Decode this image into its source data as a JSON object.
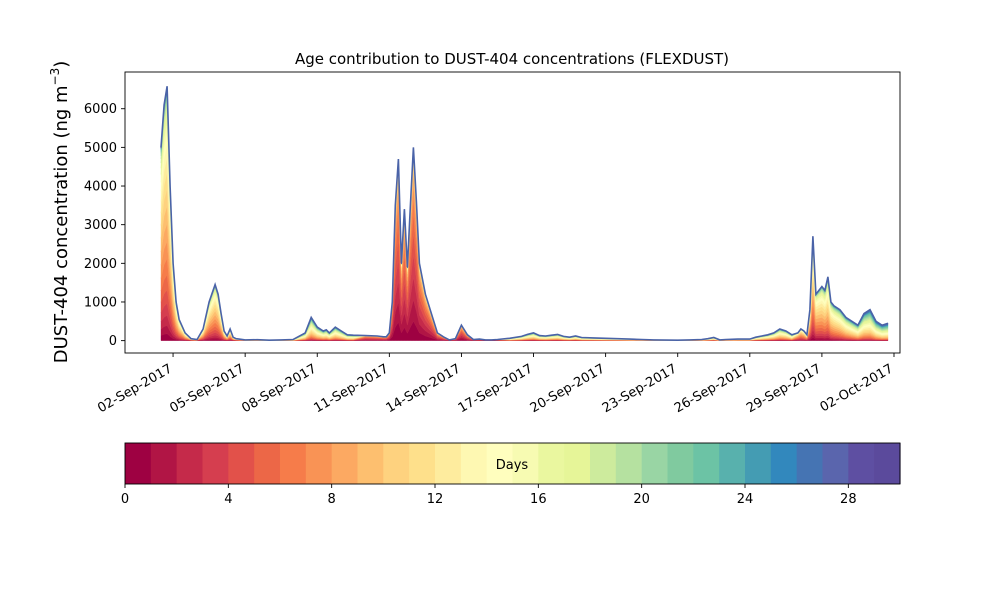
{
  "chart_data": {
    "type": "area",
    "title": "Age contribution to DUST-404 concentrations (FLEXDUST)",
    "ylabel": "DUST-404 concentration (ng m",
    "ylabel_sup": "−3",
    "ylabel_close": ")",
    "ylim": [
      -320,
      6950
    ],
    "yticks": [
      0,
      1000,
      2000,
      3000,
      4000,
      5000,
      6000
    ],
    "xlim": [
      "2017-08-31T00:00",
      "2017-10-02T06:00"
    ],
    "xtick_labels": [
      "02-Sep-2017",
      "05-Sep-2017",
      "08-Sep-2017",
      "11-Sep-2017",
      "14-Sep-2017",
      "17-Sep-2017",
      "20-Sep-2017",
      "23-Sep-2017",
      "26-Sep-2017",
      "29-Sep-2017",
      "02-Oct-2017"
    ],
    "xtick_dates": [
      "2017-09-02",
      "2017-09-05",
      "2017-09-08",
      "2017-09-11",
      "2017-09-14",
      "2017-09-17",
      "2017-09-20",
      "2017-09-23",
      "2017-09-26",
      "2017-09-29",
      "2017-10-02"
    ],
    "grid": false,
    "total": {
      "x": [
        "2017-09-01T12:00",
        "2017-09-01T15:00",
        "2017-09-01T18:00",
        "2017-09-01T21:00",
        "2017-09-02T00:00",
        "2017-09-02T03:00",
        "2017-09-02T06:00",
        "2017-09-02T12:00",
        "2017-09-02T18:00",
        "2017-09-03T00:00",
        "2017-09-03T06:00",
        "2017-09-03T12:00",
        "2017-09-03T18:00",
        "2017-09-03T21:00",
        "2017-09-04T00:00",
        "2017-09-04T03:00",
        "2017-09-04T06:00",
        "2017-09-04T09:00",
        "2017-09-04T12:00",
        "2017-09-04T15:00",
        "2017-09-04T18:00",
        "2017-09-05T00:00",
        "2017-09-05T12:00",
        "2017-09-06T00:00",
        "2017-09-06T12:00",
        "2017-09-07T00:00",
        "2017-09-07T12:00",
        "2017-09-07T18:00",
        "2017-09-08T00:00",
        "2017-09-08T06:00",
        "2017-09-08T09:00",
        "2017-09-08T12:00",
        "2017-09-08T18:00",
        "2017-09-09T00:00",
        "2017-09-09T06:00",
        "2017-09-09T12:00",
        "2017-09-10T00:00",
        "2017-09-10T12:00",
        "2017-09-10T18:00",
        "2017-09-10T21:00",
        "2017-09-11T00:00",
        "2017-09-11T03:00",
        "2017-09-11T06:00",
        "2017-09-11T09:00",
        "2017-09-11T12:00",
        "2017-09-11T15:00",
        "2017-09-11T18:00",
        "2017-09-11T21:00",
        "2017-09-12T00:00",
        "2017-09-12T03:00",
        "2017-09-12T06:00",
        "2017-09-12T09:00",
        "2017-09-12T12:00",
        "2017-09-12T18:00",
        "2017-09-13T00:00",
        "2017-09-13T06:00",
        "2017-09-13T12:00",
        "2017-09-13T18:00",
        "2017-09-14T00:00",
        "2017-09-14T06:00",
        "2017-09-14T12:00",
        "2017-09-14T18:00",
        "2017-09-15T00:00",
        "2017-09-15T06:00",
        "2017-09-15T12:00",
        "2017-09-16T00:00",
        "2017-09-16T12:00",
        "2017-09-16T18:00",
        "2017-09-17T00:00",
        "2017-09-17T06:00",
        "2017-09-17T12:00",
        "2017-09-17T18:00",
        "2017-09-18T00:00",
        "2017-09-18T06:00",
        "2017-09-18T12:00",
        "2017-09-18T18:00",
        "2017-09-19T00:00",
        "2017-09-19T12:00",
        "2017-09-20T00:00",
        "2017-09-20T12:00",
        "2017-09-21T00:00",
        "2017-09-21T12:00",
        "2017-09-22T00:00",
        "2017-09-22T12:00",
        "2017-09-23T00:00",
        "2017-09-23T12:00",
        "2017-09-24T00:00",
        "2017-09-24T06:00",
        "2017-09-24T12:00",
        "2017-09-24T18:00",
        "2017-09-25T00:00",
        "2017-09-25T12:00",
        "2017-09-26T00:00",
        "2017-09-26T06:00",
        "2017-09-26T12:00",
        "2017-09-26T18:00",
        "2017-09-27T00:00",
        "2017-09-27T06:00",
        "2017-09-27T12:00",
        "2017-09-27T18:00",
        "2017-09-28T00:00",
        "2017-09-28T03:00",
        "2017-09-28T06:00",
        "2017-09-28T09:00",
        "2017-09-28T12:00",
        "2017-09-28T15:00",
        "2017-09-28T18:00",
        "2017-09-28T21:00",
        "2017-09-29T00:00",
        "2017-09-29T03:00",
        "2017-09-29T06:00",
        "2017-09-29T09:00",
        "2017-09-29T12:00",
        "2017-09-29T18:00",
        "2017-09-30T00:00",
        "2017-09-30T06:00",
        "2017-09-30T12:00",
        "2017-09-30T18:00",
        "2017-10-01T00:00",
        "2017-10-01T06:00",
        "2017-10-01T12:00",
        "2017-10-01T18:00"
      ],
      "y": [
        5000,
        6100,
        6580,
        4000,
        2000,
        1000,
        550,
        200,
        50,
        30,
        300,
        1000,
        1450,
        1200,
        700,
        250,
        120,
        300,
        90,
        50,
        40,
        20,
        25,
        10,
        20,
        30,
        200,
        600,
        350,
        250,
        280,
        200,
        350,
        250,
        150,
        140,
        130,
        120,
        100,
        100,
        200,
        1000,
        3500,
        4700,
        2000,
        3400,
        1900,
        3500,
        5000,
        3600,
        2000,
        1600,
        1200,
        700,
        200,
        100,
        20,
        50,
        400,
        150,
        30,
        40,
        20,
        20,
        30,
        60,
        110,
        160,
        200,
        130,
        120,
        140,
        160,
        110,
        90,
        120,
        80,
        70,
        60,
        50,
        40,
        30,
        20,
        15,
        10,
        20,
        30,
        50,
        80,
        20,
        30,
        40,
        40,
        90,
        120,
        150,
        200,
        300,
        250,
        150,
        200,
        300,
        250,
        150,
        800,
        2700,
        1200,
        1300,
        1400,
        1300,
        1650,
        1000,
        900,
        800,
        600,
        500,
        400,
        700,
        800,
        500,
        400,
        450
      ]
    },
    "colorbar": {
      "label": "Days",
      "range": [
        0,
        30
      ],
      "tick_values": [
        0,
        4,
        8,
        12,
        16,
        20,
        24,
        28
      ],
      "tick_labels": [
        "0",
        "4",
        "8",
        "12",
        "16",
        "20",
        "24",
        "28"
      ],
      "colors": [
        "#9e0142",
        "#b11545",
        "#c52a4a",
        "#d53e4f",
        "#e2514a",
        "#ec6747",
        "#f67c4a",
        "#f99355",
        "#fca962",
        "#fdbf6f",
        "#fed27f",
        "#fee08b",
        "#feec9e",
        "#fef8b2",
        "#fffebe",
        "#f7fbb2",
        "#eaf79f",
        "#e6f598",
        "#cdeb9d",
        "#b5e1a0",
        "#99d5a4",
        "#80ca9f",
        "#6cc3a5",
        "#58b1ad",
        "#449cb3",
        "#3288bd",
        "#4574b3",
        "#5a65ad",
        "#5e4fa2",
        "#5b4a9c"
      ]
    }
  }
}
